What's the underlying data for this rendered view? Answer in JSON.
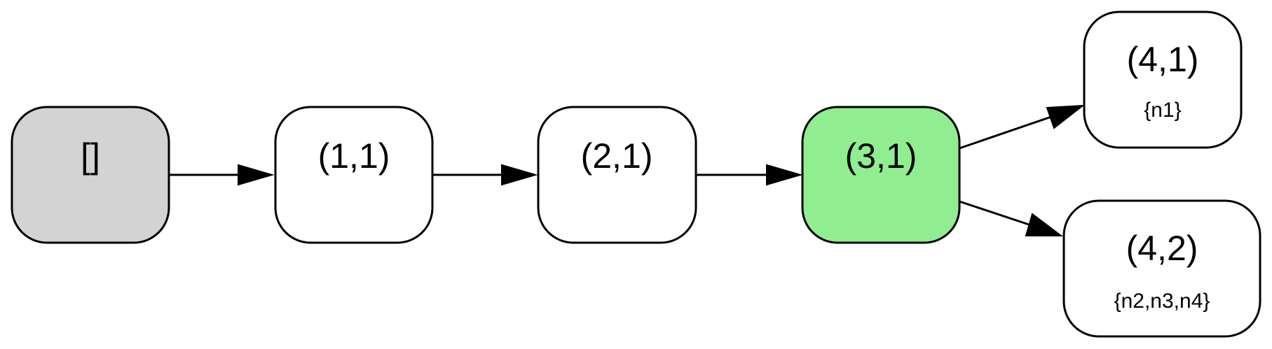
{
  "colors": {
    "root_fill": "#d3d3d3",
    "default_fill": "#ffffff",
    "highlight_fill": "#90ee90",
    "stroke": "#000000"
  },
  "nodes": {
    "root": {
      "label": "[]",
      "sublabel": ""
    },
    "n_1_1": {
      "label": "(1,1)",
      "sublabel": ""
    },
    "n_2_1": {
      "label": "(2,1)",
      "sublabel": ""
    },
    "n_3_1": {
      "label": "(3,1)",
      "sublabel": ""
    },
    "n_4_1": {
      "label": "(4,1)",
      "sublabel": "{n1}"
    },
    "n_4_2": {
      "label": "(4,2)",
      "sublabel": "{n2,n3,n4}"
    }
  },
  "edges": [
    {
      "from": "root",
      "to": "n_1_1"
    },
    {
      "from": "n_1_1",
      "to": "n_2_1"
    },
    {
      "from": "n_2_1",
      "to": "n_3_1"
    },
    {
      "from": "n_3_1",
      "to": "n_4_1"
    },
    {
      "from": "n_3_1",
      "to": "n_4_2"
    }
  ]
}
